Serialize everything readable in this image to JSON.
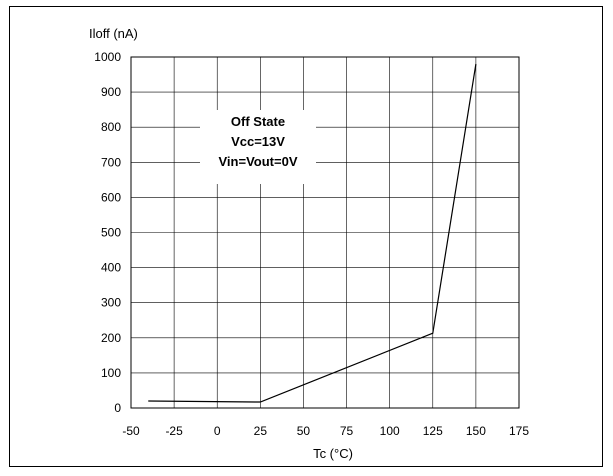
{
  "chart_data": {
    "type": "line",
    "ylabel": "Iloff (nA)",
    "xlabel": "Tc (°C)",
    "xlim": [
      -50,
      175
    ],
    "ylim": [
      0,
      1000
    ],
    "x_ticks": [
      -50,
      -25,
      0,
      25,
      50,
      75,
      100,
      125,
      150,
      175
    ],
    "y_ticks": [
      0,
      100,
      200,
      300,
      400,
      500,
      600,
      700,
      800,
      900,
      1000
    ],
    "grid": true,
    "series": [
      {
        "x": [
          -40,
          25,
          125,
          150
        ],
        "y": [
          20,
          17,
          213,
          980
        ]
      }
    ],
    "annotation": [
      "Off State",
      "Vcc=13V",
      "Vin=Vout=0V"
    ]
  }
}
